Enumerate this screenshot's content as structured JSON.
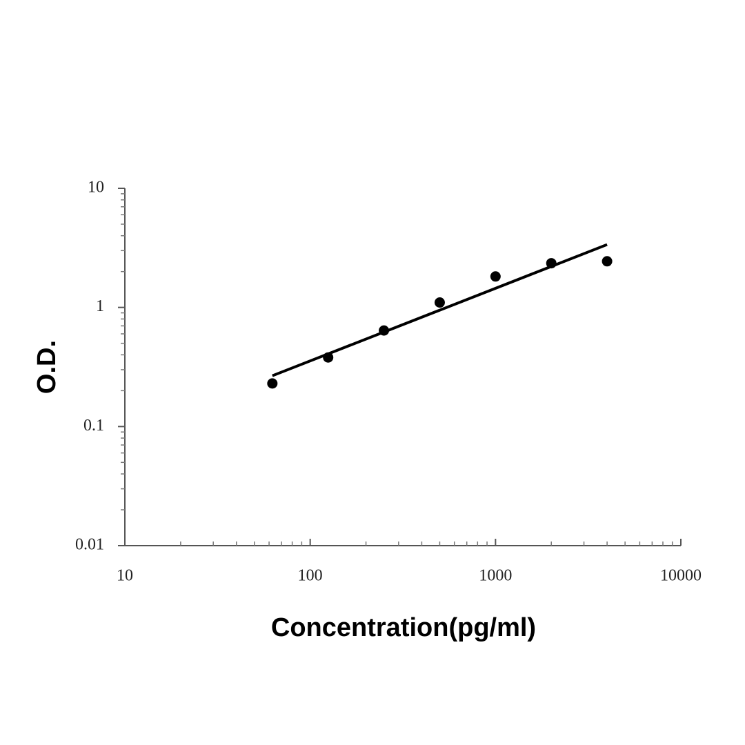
{
  "chart_data": {
    "type": "scatter",
    "xlabel": "Concentration(pg/ml)",
    "ylabel": "O.D.",
    "xlog": true,
    "ylog": true,
    "xlim": [
      10,
      10000
    ],
    "ylim": [
      0.01,
      10
    ],
    "xticks": [
      10,
      100,
      1000,
      10000
    ],
    "yticks": [
      0.01,
      0.1,
      1,
      10
    ],
    "xminorticks": [
      20,
      30,
      40,
      50,
      60,
      70,
      80,
      90,
      200,
      300,
      400,
      500,
      600,
      700,
      800,
      900,
      2000,
      3000,
      4000,
      5000,
      6000,
      7000,
      8000,
      9000
    ],
    "yminorticks": [
      0.02,
      0.03,
      0.04,
      0.05,
      0.06,
      0.07,
      0.08,
      0.09,
      0.2,
      0.3,
      0.4,
      0.5,
      0.6,
      0.7,
      0.8,
      0.9,
      2,
      3,
      4,
      5,
      6,
      7,
      8,
      9
    ],
    "series": [
      {
        "color": "#000000",
        "x": [
          62.5,
          125,
          250,
          500,
          1000,
          2000,
          4000
        ],
        "values": [
          0.23,
          0.38,
          0.64,
          1.1,
          1.82,
          2.35,
          2.44
        ]
      }
    ],
    "trend_line": {
      "color": "#000000",
      "x": [
        62.5,
        4000
      ],
      "values": [
        0.267,
        3.37
      ]
    }
  }
}
